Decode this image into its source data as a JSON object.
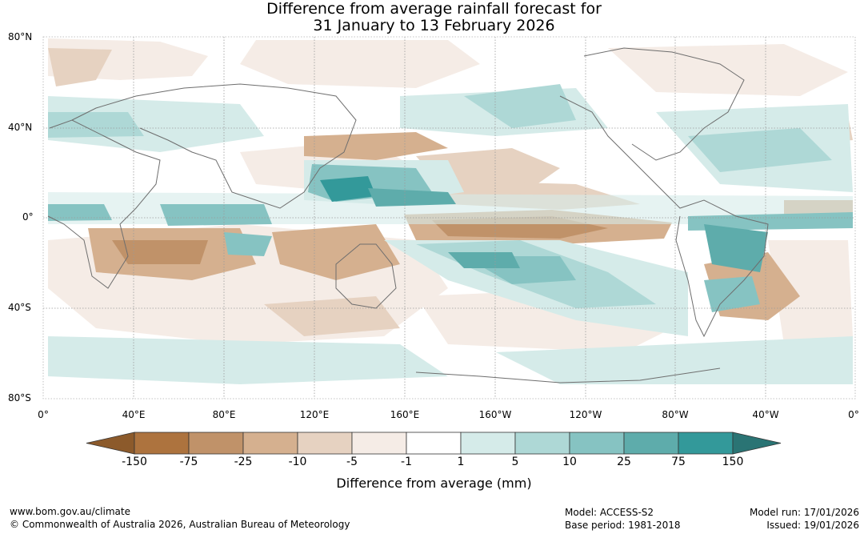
{
  "title": {
    "line1": "Difference from average rainfall forecast for",
    "line2": "31 January to 13 February 2026"
  },
  "map": {
    "lat_labels": [
      "80°N",
      "40°N",
      "0°",
      "40°S",
      "80°S"
    ],
    "lon_labels": [
      "0°",
      "40°E",
      "80°E",
      "120°E",
      "160°E",
      "160°W",
      "120°W",
      "80°W",
      "40°W",
      "0°"
    ]
  },
  "colorbar": {
    "title": "Difference from average (mm)",
    "labels": [
      "-150",
      "-75",
      "-25",
      "-10",
      "-5",
      "-1",
      "1",
      "5",
      "10",
      "25",
      "75",
      "150"
    ],
    "colors": {
      "dry_extend": "#8c5a2b",
      "bins": [
        "#ad733e",
        "#c09269",
        "#d5b08f",
        "#e6d2c1",
        "#f5ece6",
        "#ffffff",
        "#d5ebe9",
        "#aed8d6",
        "#86c3c2",
        "#5eacab",
        "#33999a"
      ],
      "wet_extend": "#2a7474"
    }
  },
  "footer": {
    "url": "www.bom.gov.au/climate",
    "copyright": "© Commonwealth of Australia 2026, Australian Bureau of Meteorology",
    "model": "Model: ACCESS-S2",
    "base_period": "Base period: 1981-2018",
    "model_run": "Model run: 17/01/2026",
    "issued": "Issued: 19/01/2026"
  }
}
